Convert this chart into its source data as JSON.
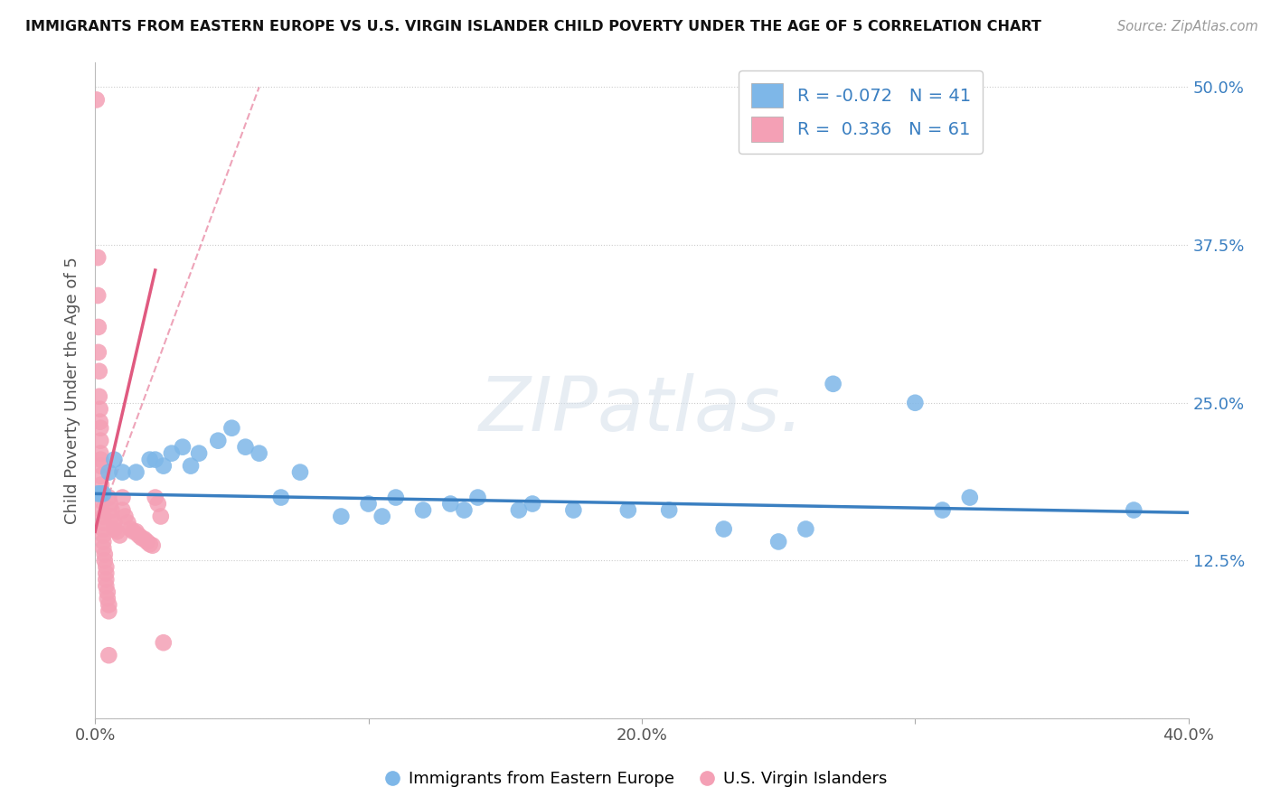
{
  "title": "IMMIGRANTS FROM EASTERN EUROPE VS U.S. VIRGIN ISLANDER CHILD POVERTY UNDER THE AGE OF 5 CORRELATION CHART",
  "source": "Source: ZipAtlas.com",
  "ylabel": "Child Poverty Under the Age of 5",
  "watermark": "ZIPatlas.",
  "xlim": [
    0.0,
    0.4
  ],
  "ylim": [
    0.0,
    0.52
  ],
  "ytick_vals": [
    0.0,
    0.125,
    0.25,
    0.375,
    0.5
  ],
  "ytick_labels": [
    "",
    "12.5%",
    "25.0%",
    "37.5%",
    "50.0%"
  ],
  "xtick_vals": [
    0.0,
    0.1,
    0.2,
    0.3,
    0.4
  ],
  "xtick_labels": [
    "0.0%",
    "",
    "20.0%",
    "",
    "40.0%"
  ],
  "legend_blue_r": "-0.072",
  "legend_blue_n": "41",
  "legend_pink_r": "0.336",
  "legend_pink_n": "61",
  "blue_color": "#7EB7E8",
  "pink_color": "#F4A0B5",
  "blue_line_color": "#3A7FC1",
  "pink_line_color": "#E05A80",
  "blue_line": [
    [
      0.0,
      0.178
    ],
    [
      0.4,
      0.163
    ]
  ],
  "pink_line_solid": [
    [
      0.0,
      0.148
    ],
    [
      0.022,
      0.355
    ]
  ],
  "pink_line_dash": [
    [
      0.0,
      0.148
    ],
    [
      0.06,
      0.5
    ]
  ],
  "blue_scatter": [
    [
      0.001,
      0.178
    ],
    [
      0.002,
      0.178
    ],
    [
      0.003,
      0.178
    ],
    [
      0.005,
      0.195
    ],
    [
      0.007,
      0.205
    ],
    [
      0.01,
      0.195
    ],
    [
      0.015,
      0.195
    ],
    [
      0.02,
      0.205
    ],
    [
      0.022,
      0.205
    ],
    [
      0.025,
      0.2
    ],
    [
      0.028,
      0.21
    ],
    [
      0.032,
      0.215
    ],
    [
      0.035,
      0.2
    ],
    [
      0.038,
      0.21
    ],
    [
      0.045,
      0.22
    ],
    [
      0.05,
      0.23
    ],
    [
      0.055,
      0.215
    ],
    [
      0.06,
      0.21
    ],
    [
      0.068,
      0.175
    ],
    [
      0.075,
      0.195
    ],
    [
      0.09,
      0.16
    ],
    [
      0.1,
      0.17
    ],
    [
      0.105,
      0.16
    ],
    [
      0.11,
      0.175
    ],
    [
      0.12,
      0.165
    ],
    [
      0.13,
      0.17
    ],
    [
      0.135,
      0.165
    ],
    [
      0.14,
      0.175
    ],
    [
      0.155,
      0.165
    ],
    [
      0.16,
      0.17
    ],
    [
      0.175,
      0.165
    ],
    [
      0.195,
      0.165
    ],
    [
      0.21,
      0.165
    ],
    [
      0.23,
      0.15
    ],
    [
      0.25,
      0.14
    ],
    [
      0.26,
      0.15
    ],
    [
      0.27,
      0.265
    ],
    [
      0.3,
      0.25
    ],
    [
      0.31,
      0.165
    ],
    [
      0.32,
      0.175
    ],
    [
      0.38,
      0.165
    ]
  ],
  "pink_scatter": [
    [
      0.0005,
      0.49
    ],
    [
      0.001,
      0.365
    ],
    [
      0.001,
      0.335
    ],
    [
      0.0012,
      0.31
    ],
    [
      0.0012,
      0.29
    ],
    [
      0.0015,
      0.275
    ],
    [
      0.0015,
      0.255
    ],
    [
      0.0018,
      0.245
    ],
    [
      0.0018,
      0.235
    ],
    [
      0.002,
      0.23
    ],
    [
      0.002,
      0.22
    ],
    [
      0.002,
      0.21
    ],
    [
      0.002,
      0.205
    ],
    [
      0.002,
      0.2
    ],
    [
      0.002,
      0.192
    ],
    [
      0.0022,
      0.185
    ],
    [
      0.0022,
      0.178
    ],
    [
      0.0025,
      0.172
    ],
    [
      0.0025,
      0.165
    ],
    [
      0.003,
      0.16
    ],
    [
      0.003,
      0.155
    ],
    [
      0.003,
      0.15
    ],
    [
      0.003,
      0.145
    ],
    [
      0.003,
      0.14
    ],
    [
      0.003,
      0.135
    ],
    [
      0.0035,
      0.13
    ],
    [
      0.0035,
      0.125
    ],
    [
      0.004,
      0.12
    ],
    [
      0.004,
      0.115
    ],
    [
      0.004,
      0.11
    ],
    [
      0.004,
      0.105
    ],
    [
      0.0045,
      0.1
    ],
    [
      0.0045,
      0.095
    ],
    [
      0.005,
      0.09
    ],
    [
      0.005,
      0.085
    ],
    [
      0.005,
      0.175
    ],
    [
      0.0055,
      0.17
    ],
    [
      0.006,
      0.165
    ],
    [
      0.006,
      0.16
    ],
    [
      0.007,
      0.155
    ],
    [
      0.007,
      0.15
    ],
    [
      0.008,
      0.148
    ],
    [
      0.009,
      0.145
    ],
    [
      0.01,
      0.175
    ],
    [
      0.01,
      0.165
    ],
    [
      0.011,
      0.16
    ],
    [
      0.012,
      0.155
    ],
    [
      0.013,
      0.15
    ],
    [
      0.014,
      0.148
    ],
    [
      0.015,
      0.148
    ],
    [
      0.016,
      0.145
    ],
    [
      0.017,
      0.143
    ],
    [
      0.018,
      0.142
    ],
    [
      0.019,
      0.14
    ],
    [
      0.02,
      0.138
    ],
    [
      0.021,
      0.137
    ],
    [
      0.022,
      0.175
    ],
    [
      0.023,
      0.17
    ],
    [
      0.024,
      0.16
    ],
    [
      0.025,
      0.06
    ],
    [
      0.005,
      0.05
    ]
  ]
}
